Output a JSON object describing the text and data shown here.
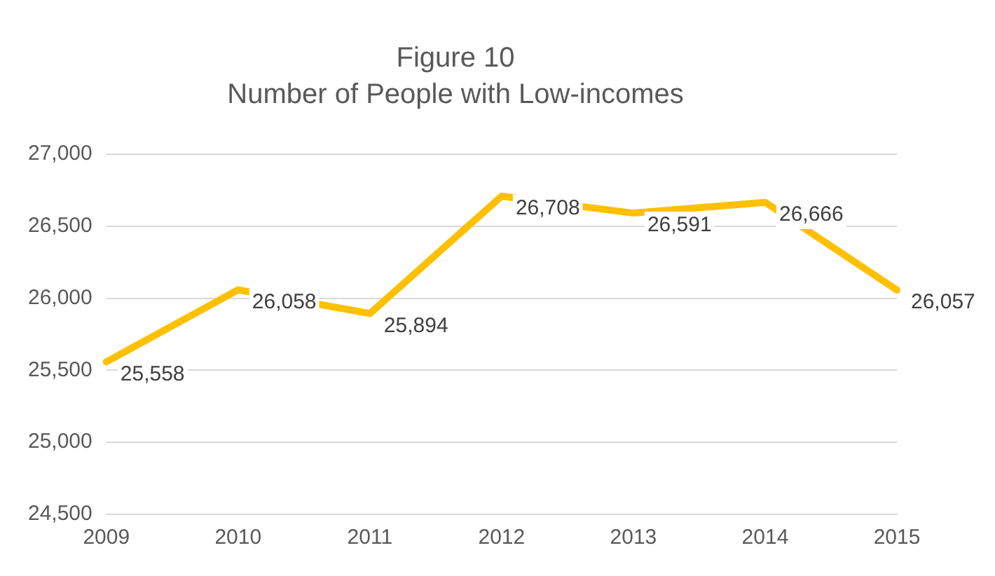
{
  "chart_data": {
    "type": "line",
    "title": "Figure 10",
    "subtitle": "Number of People with Low-incomes",
    "categories": [
      "2009",
      "2010",
      "2011",
      "2012",
      "2013",
      "2014",
      "2015"
    ],
    "series": [
      {
        "color": "#ffc000",
        "values": [
          25558,
          26058,
          25894,
          26708,
          26591,
          26666,
          26057
        ],
        "value_labels": [
          "25,558",
          "26,058",
          "25,894",
          "26,708",
          "26,591",
          "26,666",
          "26,057"
        ]
      }
    ],
    "ylim": [
      24500,
      27000
    ],
    "yticks": [
      {
        "value": 24500,
        "label": "24,500"
      },
      {
        "value": 25000,
        "label": "25,000"
      },
      {
        "value": 25500,
        "label": "25,500"
      },
      {
        "value": 26000,
        "label": "26,000"
      },
      {
        "value": 26500,
        "label": "26,500"
      },
      {
        "value": 27000,
        "label": "27,000"
      }
    ],
    "grid": "y",
    "legend": false,
    "marker": "none",
    "line_style": "solid"
  }
}
